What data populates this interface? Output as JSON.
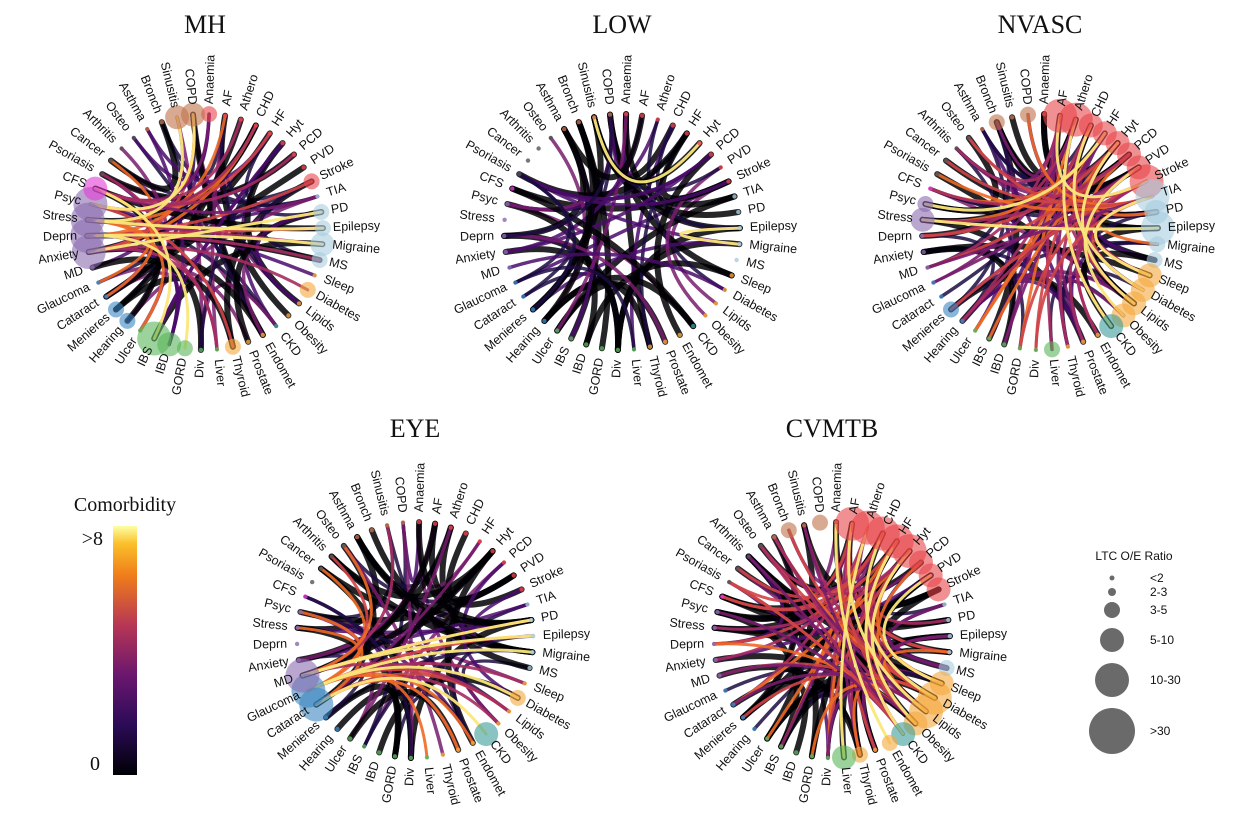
{
  "conditions": [
    "Anaemia",
    "AF",
    "Athero",
    "CHD",
    "HF",
    "Hyt",
    "PCD",
    "PVD",
    "Stroke",
    "TIA",
    "PD",
    "Epilepsy",
    "Migraine",
    "MS",
    "Sleep",
    "Diabetes",
    "Lipids",
    "Obesity",
    "CKD",
    "Endomet",
    "Prostate",
    "Thyroid",
    "Liver",
    "Div",
    "GORD",
    "IBD",
    "IBS",
    "Ulcer",
    "Hearing",
    "Menieres",
    "Cataract",
    "Glaucoma",
    "MD",
    "Anxiety",
    "Deprn",
    "Stress",
    "Psyc",
    "CFS",
    "Psoriasis",
    "Cancer",
    "Arthritis",
    "Osteo",
    "Asthma",
    "Bronch",
    "Sinusitis",
    "COPD"
  ],
  "group_colors": {
    "cardio": "#e8464a",
    "neuro": "#a8cde0",
    "metabolic": "#f5a93c",
    "renal": "#3a9c9a",
    "gi": "#5ab55a",
    "eye_ear": "#3b86c0",
    "mental": "#8a6cb0",
    "cfs": "#e53bd6",
    "other": "#555555",
    "resp": "#c0714a"
  },
  "chart_data": [
    {
      "type": "chord",
      "title": "MH",
      "highlight_nodes": {
        "Anxiety": "10-30",
        "Deprn": "10-30",
        "Stress": "10-30",
        "Psyc": "10-30",
        "CFS": "5-10",
        "Psoriasis": "<2",
        "COPD": "5-10",
        "Sinusitis": "5-10",
        "Anaemia": "3-5",
        "Stroke": "3-5",
        "PD": "3-5",
        "Epilepsy": "3-5",
        "Migraine": "5-10",
        "MS": "3-5",
        "Diabetes": "3-5",
        "IBS": "10-30",
        "IBD": "5-10",
        "GORD": "3-5",
        "Thyroid": "3-5",
        "Menieres": "3-5",
        "Hearing": "3-5"
      },
      "hub_nodes": [
        "Anxiety",
        "Deprn",
        "Stress",
        "Psyc",
        "CFS"
      ],
      "top_links": [
        [
          "Stress",
          "Epilepsy"
        ],
        [
          "Deprn",
          "Migraine"
        ],
        [
          "Anxiety",
          "PD"
        ],
        [
          "Psyc",
          "COPD"
        ],
        [
          "CFS",
          "IBS"
        ],
        [
          "Stress",
          "Sinusitis"
        ],
        [
          "Deprn",
          "GORD"
        ]
      ]
    },
    {
      "type": "chord",
      "title": "LOW",
      "highlight_nodes": {},
      "hub_nodes": [],
      "top_links": [
        [
          "Hyt",
          "Sinusitis"
        ],
        [
          "Migraine",
          "Epilepsy"
        ]
      ]
    },
    {
      "type": "chord",
      "title": "NVASC",
      "highlight_nodes": {
        "AF": "10-30",
        "Athero": "10-30",
        "CHD": "5-10",
        "HF": "5-10",
        "Hyt": "5-10",
        "PCD": "5-10",
        "PVD": "5-10",
        "Stroke": "10-30",
        "TIA": "10-30",
        "PD": "5-10",
        "Epilepsy": "10-30",
        "Migraine": "3-5",
        "MS": "3-5",
        "Sleep": "5-10",
        "Diabetes": "5-10",
        "Lipids": "5-10",
        "Obesity": "5-10",
        "CKD": "5-10",
        "Liver": "3-5",
        "Stress": "5-10",
        "Psyc": "3-5",
        "Menieres": "3-5",
        "COPD": "3-5",
        "Bronch": "3-5"
      },
      "hub_nodes": [
        "AF",
        "Athero",
        "CHD",
        "HF",
        "Hyt",
        "PCD",
        "PVD",
        "Stroke",
        "TIA"
      ],
      "top_links": [
        [
          "Stress",
          "Epilepsy"
        ],
        [
          "AF",
          "Stroke"
        ],
        [
          "CHD",
          "Diabetes"
        ],
        [
          "Hyt",
          "Lipids"
        ],
        [
          "PVD",
          "Obesity"
        ],
        [
          "HF",
          "Psyc"
        ],
        [
          "Athero",
          "CKD"
        ],
        [
          "TIA",
          "Sleep"
        ]
      ]
    },
    {
      "type": "chord",
      "title": "EYE",
      "highlight_nodes": {
        "Cataract": "10-30",
        "Glaucoma": "10-30",
        "MD": "10-30",
        "Diabetes": "3-5",
        "CKD": "5-10",
        "Epilepsy": "<2"
      },
      "hub_nodes": [
        "Cataract",
        "Glaucoma",
        "MD"
      ],
      "top_links": [
        [
          "MD",
          "Epilepsy"
        ],
        [
          "Glaucoma",
          "Diabetes"
        ],
        [
          "Cataract",
          "CKD"
        ],
        [
          "MD",
          "PD"
        ],
        [
          "Glaucoma",
          "Migraine"
        ]
      ]
    },
    {
      "type": "chord",
      "title": "CVMTB",
      "highlight_nodes": {
        "AF": "10-30",
        "Athero": "10-30",
        "CHD": "10-30",
        "HF": "10-30",
        "Hyt": "10-30",
        "PCD": "5-10",
        "PVD": "5-10",
        "Stroke": "5-10",
        "MS": "3-5",
        "Sleep": "5-10",
        "Diabetes": "10-30",
        "Lipids": "10-30",
        "Obesity": "5-10",
        "CKD": "5-10",
        "Endomet": "3-5",
        "Liver": "5-10",
        "Thyroid": "3-5",
        "Bronch": "3-5",
        "COPD": "3-5"
      },
      "hub_nodes": [
        "AF",
        "Athero",
        "CHD",
        "HF",
        "Hyt",
        "Diabetes",
        "Lipids",
        "Obesity",
        "CKD"
      ],
      "top_links": [
        [
          "AF",
          "Lipids"
        ],
        [
          "CHD",
          "Diabetes"
        ],
        [
          "Hyt",
          "Obesity"
        ],
        [
          "HF",
          "CKD"
        ],
        [
          "Athero",
          "Liver"
        ],
        [
          "PVD",
          "Sleep"
        ],
        [
          "Anaemia",
          "Endomet"
        ]
      ]
    }
  ],
  "colorbar": {
    "title": "Comorbidity",
    "max_label": ">8",
    "min_label": "0"
  },
  "size_legend": {
    "title": "LTC O/E Ratio",
    "labels": [
      "<2",
      "2-3",
      "3-5",
      "5-10",
      "10-30",
      ">30"
    ]
  }
}
